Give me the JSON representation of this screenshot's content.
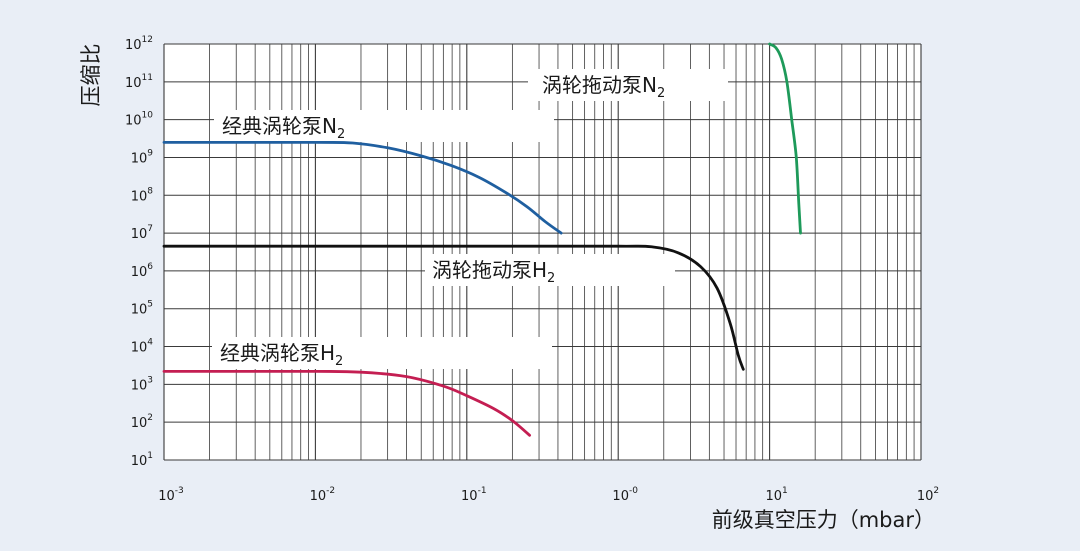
{
  "chart_data": {
    "type": "line",
    "xscale": "log",
    "yscale": "log",
    "xlim": [
      0.001,
      100
    ],
    "ylim": [
      10,
      1000000000000
    ],
    "ylabel": "压缩比",
    "xlabel": "前级真空压力（mbar）",
    "grid": true,
    "x_ticks": [
      {
        "base": "10",
        "exp": "-3",
        "value": 0.001
      },
      {
        "base": "10",
        "exp": "-2",
        "value": 0.01
      },
      {
        "base": "10",
        "exp": "-1",
        "value": 0.1
      },
      {
        "base": "10",
        "exp": "-0",
        "value": 1
      },
      {
        "base": "10",
        "exp": "1",
        "value": 10
      },
      {
        "base": "10",
        "exp": "2",
        "value": 100
      }
    ],
    "y_ticks": [
      {
        "base": "10",
        "exp": "1",
        "value": 10
      },
      {
        "base": "10",
        "exp": "2",
        "value": 100
      },
      {
        "base": "10",
        "exp": "3",
        "value": 1000
      },
      {
        "base": "10",
        "exp": "4",
        "value": 10000
      },
      {
        "base": "10",
        "exp": "5",
        "value": 100000
      },
      {
        "base": "10",
        "exp": "6",
        "value": 1000000
      },
      {
        "base": "10",
        "exp": "7",
        "value": 10000000
      },
      {
        "base": "10",
        "exp": "8",
        "value": 100000000
      },
      {
        "base": "10",
        "exp": "9",
        "value": 1000000000
      },
      {
        "base": "10",
        "exp": "10",
        "value": 10000000000
      },
      {
        "base": "10",
        "exp": "11",
        "value": 100000000000
      },
      {
        "base": "10",
        "exp": "12",
        "value": 1000000000000
      }
    ],
    "series": [
      {
        "label_text": "经典涡轮泵N",
        "label_sub": "2",
        "color": "#1f5fa0",
        "x": [
          0.001,
          0.01,
          0.018,
          0.03,
          0.05,
          0.08,
          0.12,
          0.18,
          0.25,
          0.33,
          0.42
        ],
        "y": [
          2500000000,
          2500000000,
          2400000000,
          1800000000,
          1100000000,
          600000000,
          300000000,
          120000000,
          50000000,
          20000000,
          10000000
        ]
      },
      {
        "label_text": "经典涡轮泵H",
        "label_sub": "2",
        "color": "#c41e52",
        "x": [
          0.001,
          0.01,
          0.02,
          0.04,
          0.07,
          0.1,
          0.15,
          0.2,
          0.26
        ],
        "y": [
          2200,
          2200,
          2100,
          1600,
          900,
          500,
          230,
          110,
          45
        ]
      },
      {
        "label_text": "涡轮拖动泵H",
        "label_sub": "2",
        "color": "#111111",
        "x": [
          0.001,
          0.1,
          1.0,
          1.7,
          2.5,
          3.5,
          4.5,
          5.5,
          6.2,
          6.7
        ],
        "y": [
          4500000,
          4500000,
          4500000,
          4300000,
          3000000,
          1300000,
          350000,
          40000,
          6000,
          2500
        ]
      },
      {
        "label_text": "涡轮拖动泵N",
        "label_sub": "2",
        "color": "#1e9a5a",
        "x": [
          10,
          11,
          12,
          13,
          14,
          15,
          15.6,
          16
        ],
        "y": [
          1000000000000,
          800000000000,
          400000000000,
          100000000000,
          10000000000,
          1000000000,
          60000000,
          10000000
        ]
      }
    ]
  }
}
